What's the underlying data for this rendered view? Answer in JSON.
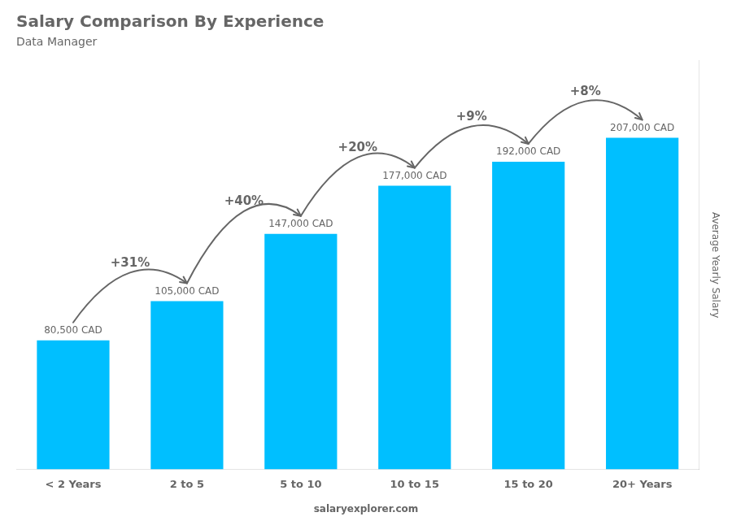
{
  "chart_data": {
    "type": "bar",
    "title": "Salary Comparison By Experience",
    "subtitle": "Data Manager",
    "categories": [
      "< 2 Years",
      "2 to 5",
      "5 to 10",
      "10 to 15",
      "15 to 20",
      "20+ Years"
    ],
    "values": [
      80500,
      105000,
      147000,
      177000,
      192000,
      207000
    ],
    "value_labels": [
      "80,500 CAD",
      "105,000 CAD",
      "147,000 CAD",
      "177,000 CAD",
      "192,000 CAD",
      "207,000 CAD"
    ],
    "data_labels": true,
    "color": "#00bfff",
    "ylabel": "Average Yearly Salary",
    "ylim": [
      0,
      255000
    ],
    "grid": false,
    "tick_labels": "x",
    "annotations": [
      "+31%",
      "+40%",
      "+20%",
      "+9%",
      "+8%"
    ],
    "footer": "salaryexplorer.com"
  }
}
